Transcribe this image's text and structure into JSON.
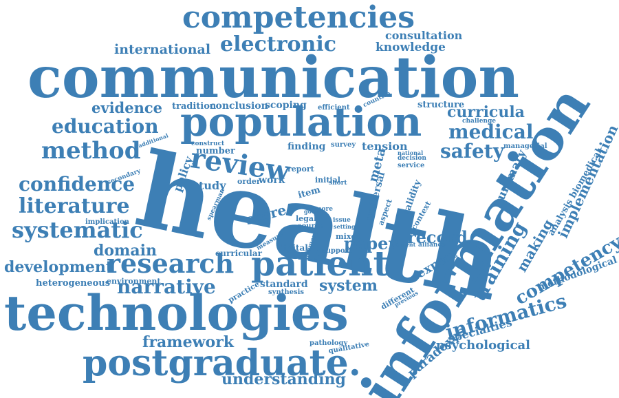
{
  "color": "#3d7fb5",
  "words": [
    "competencies",
    "consultation",
    "international",
    "electronic",
    "knowledge",
    "communication",
    "evidence",
    "tradition",
    "conclusion",
    "scoping",
    "efficient",
    "countrie",
    "structure",
    "curricula",
    "population",
    "education",
    "challenge",
    "medical",
    "method",
    "additional",
    "construct",
    "number",
    "finding",
    "survey",
    "tension",
    "national",
    "decision",
    "service",
    "safety",
    "managerial",
    "review",
    "confidence",
    "policy",
    "study",
    "order",
    "work",
    "report",
    "meta",
    "health",
    "literature",
    "implementation",
    "summary",
    "analysis biomedical",
    "secondary",
    "spearman",
    "item",
    "initial",
    "short",
    "universal",
    "validity",
    "aspect",
    "context",
    "implication",
    "score",
    "legal",
    "source",
    "issue",
    "setting",
    "good",
    "more",
    "systematic",
    "domain",
    "mixed",
    "paper",
    "record",
    "making",
    "competency",
    "information",
    "development",
    "research",
    "patient",
    "curricular",
    "measure",
    "digital",
    "primary",
    "support",
    "content",
    "alliance",
    "expert",
    "training",
    "heterogeneous",
    "environment",
    "narrative",
    "practice",
    "standard",
    "synthesis",
    "system",
    "different",
    "previous",
    "informatics",
    "methodological",
    "technologies",
    "specialties",
    "framework",
    "paradoxes",
    "psychological",
    "pathology",
    "qualitative",
    "postgraduate.",
    "understanding"
  ]
}
